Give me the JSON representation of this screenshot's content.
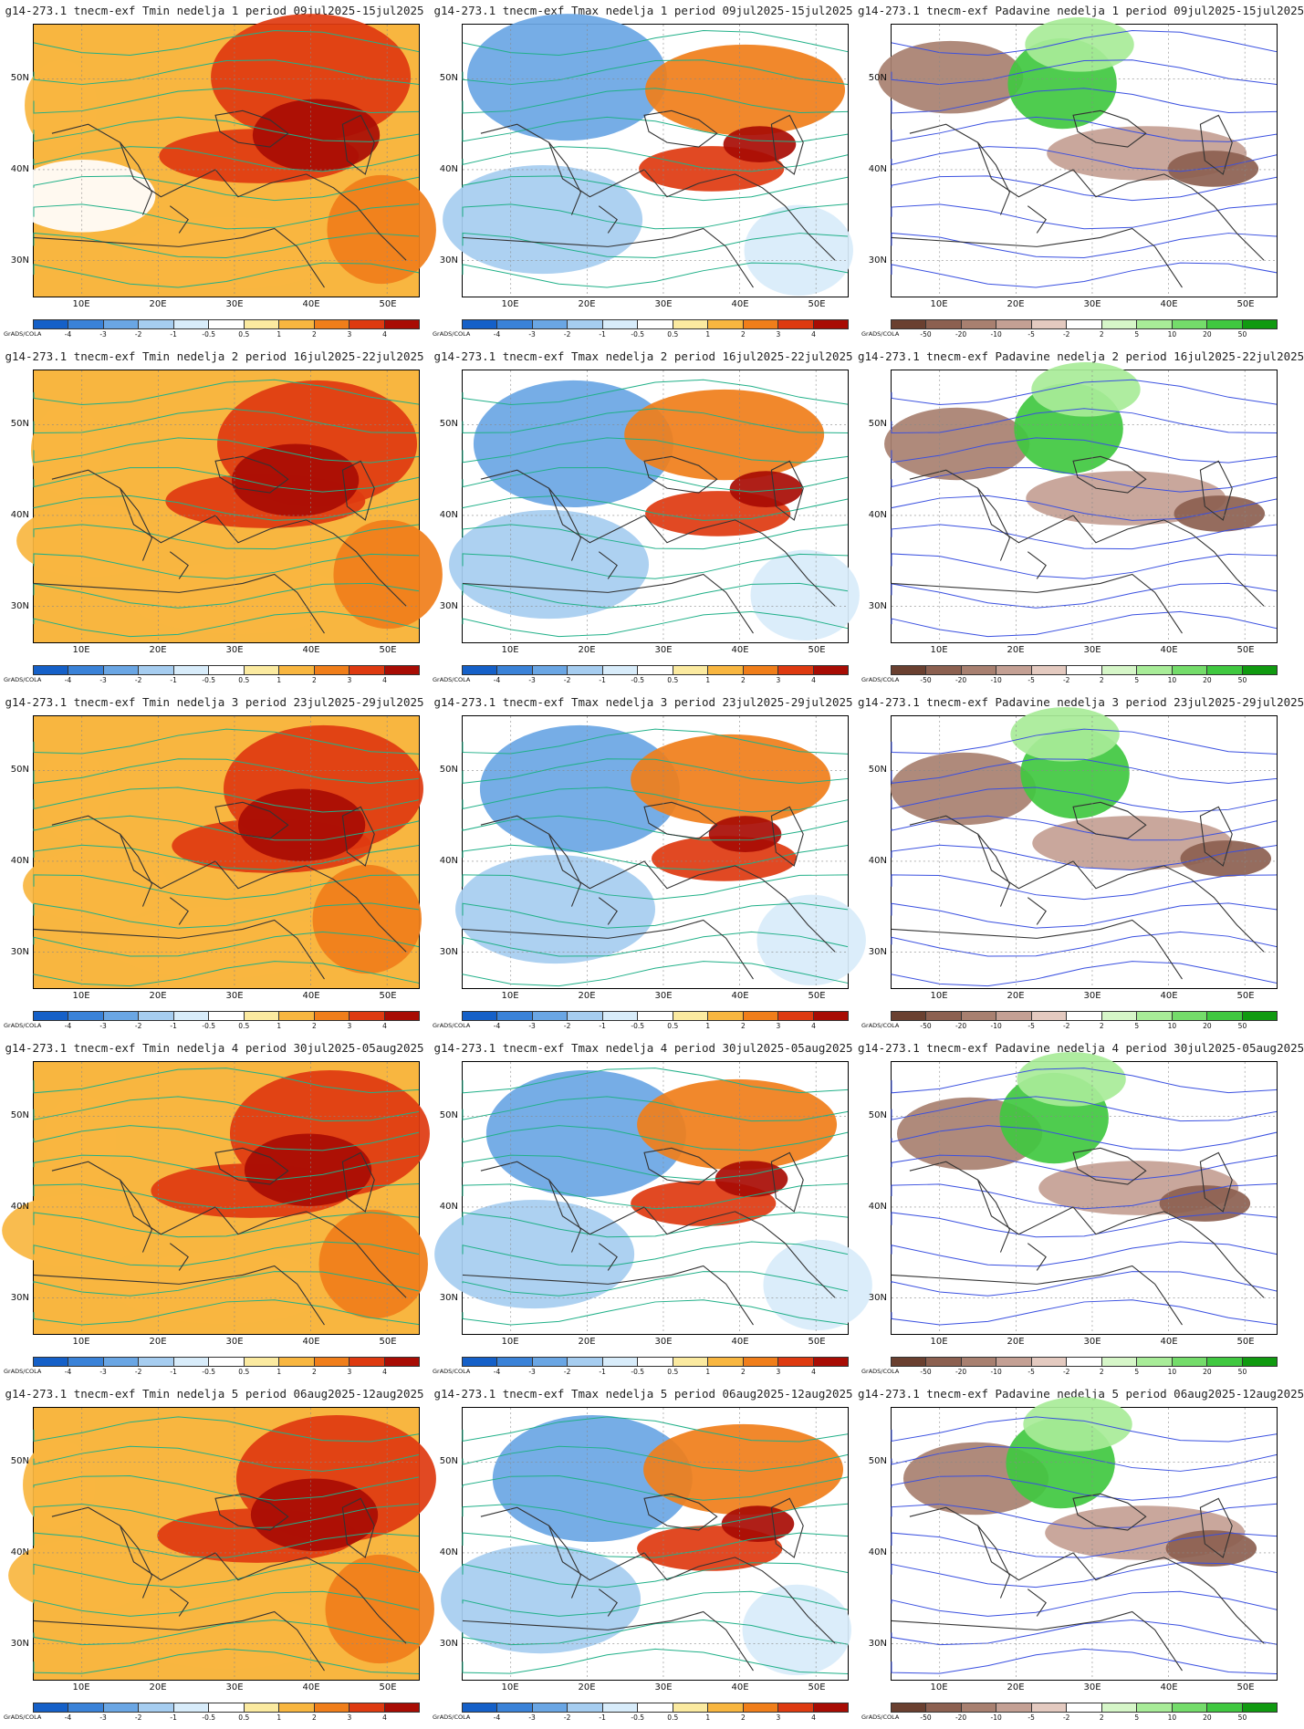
{
  "credit": "GrADS/COLA",
  "x_ticks": [
    "10E",
    "20E",
    "30E",
    "40E",
    "50E"
  ],
  "y_ticks": [
    "50N",
    "40N",
    "30N"
  ],
  "scales": {
    "temp": {
      "labels": [
        "-4",
        "-3",
        "-2",
        "-1",
        "-0.5",
        "0.5",
        "1",
        "2",
        "3",
        "4"
      ],
      "colors": [
        "#1560c8",
        "#3a82d8",
        "#6aa6e4",
        "#a6cdf0",
        "#d8ecfa",
        "#ffffff",
        "#fbeaa0",
        "#f8b640",
        "#f07e1a",
        "#de3a10",
        "#a80c04"
      ]
    },
    "precip": {
      "labels": [
        "-50",
        "-20",
        "-10",
        "-5",
        "-2",
        "2",
        "5",
        "10",
        "20",
        "50"
      ],
      "colors": [
        "#6a4030",
        "#8c6050",
        "#a88070",
        "#c4a094",
        "#e4cac0",
        "#ffffff",
        "#d6f6c8",
        "#a8ec98",
        "#74dc6a",
        "#40c840",
        "#109a10"
      ]
    }
  },
  "rows": [
    {
      "tmin": "g14-273.1 tnecm-exf Tmin nedelja 1 period 09jul2025-15jul2025",
      "tmax": "g14-273.1 tnecm-exf Tmax nedelja 1 period 09jul2025-15jul2025",
      "prec": "g14-273.1 tnecm-exf Padavine nedelja 1 period 09jul2025-15jul2025"
    },
    {
      "tmin": "g14-273.1 tnecm-exf Tmin nedelja 2 period 16jul2025-22jul2025",
      "tmax": "g14-273.1 tnecm-exf Tmax nedelja 2 period 16jul2025-22jul2025",
      "prec": "g14-273.1 tnecm-exf Padavine nedelja 2 period 16jul2025-22jul2025"
    },
    {
      "tmin": "g14-273.1 tnecm-exf Tmin nedelja 3 period 23jul2025-29jul2025",
      "tmax": "g14-273.1 tnecm-exf Tmax nedelja 3 period 23jul2025-29jul2025",
      "prec": "g14-273.1 tnecm-exf Padavine nedelja 3 period 23jul2025-29jul2025"
    },
    {
      "tmin": "g14-273.1 tnecm-exf Tmin nedelja 4 period 30jul2025-05aug2025",
      "tmax": "g14-273.1 tnecm-exf Tmax nedelja 4 period 30jul2025-05aug2025",
      "prec": "g14-273.1 tnecm-exf Padavine nedelja 4 period 30jul2025-05aug2025"
    },
    {
      "tmin": "g14-273.1 tnecm-exf Tmin nedelja 5 period 06aug2025-12aug2025",
      "tmax": "g14-273.1 tnecm-exf Tmax nedelja 5 period 06aug2025-12aug2025",
      "prec": "g14-273.1 tnecm-exf Padavine nedelja 5 period 06aug2025-12aug2025"
    }
  ]
}
